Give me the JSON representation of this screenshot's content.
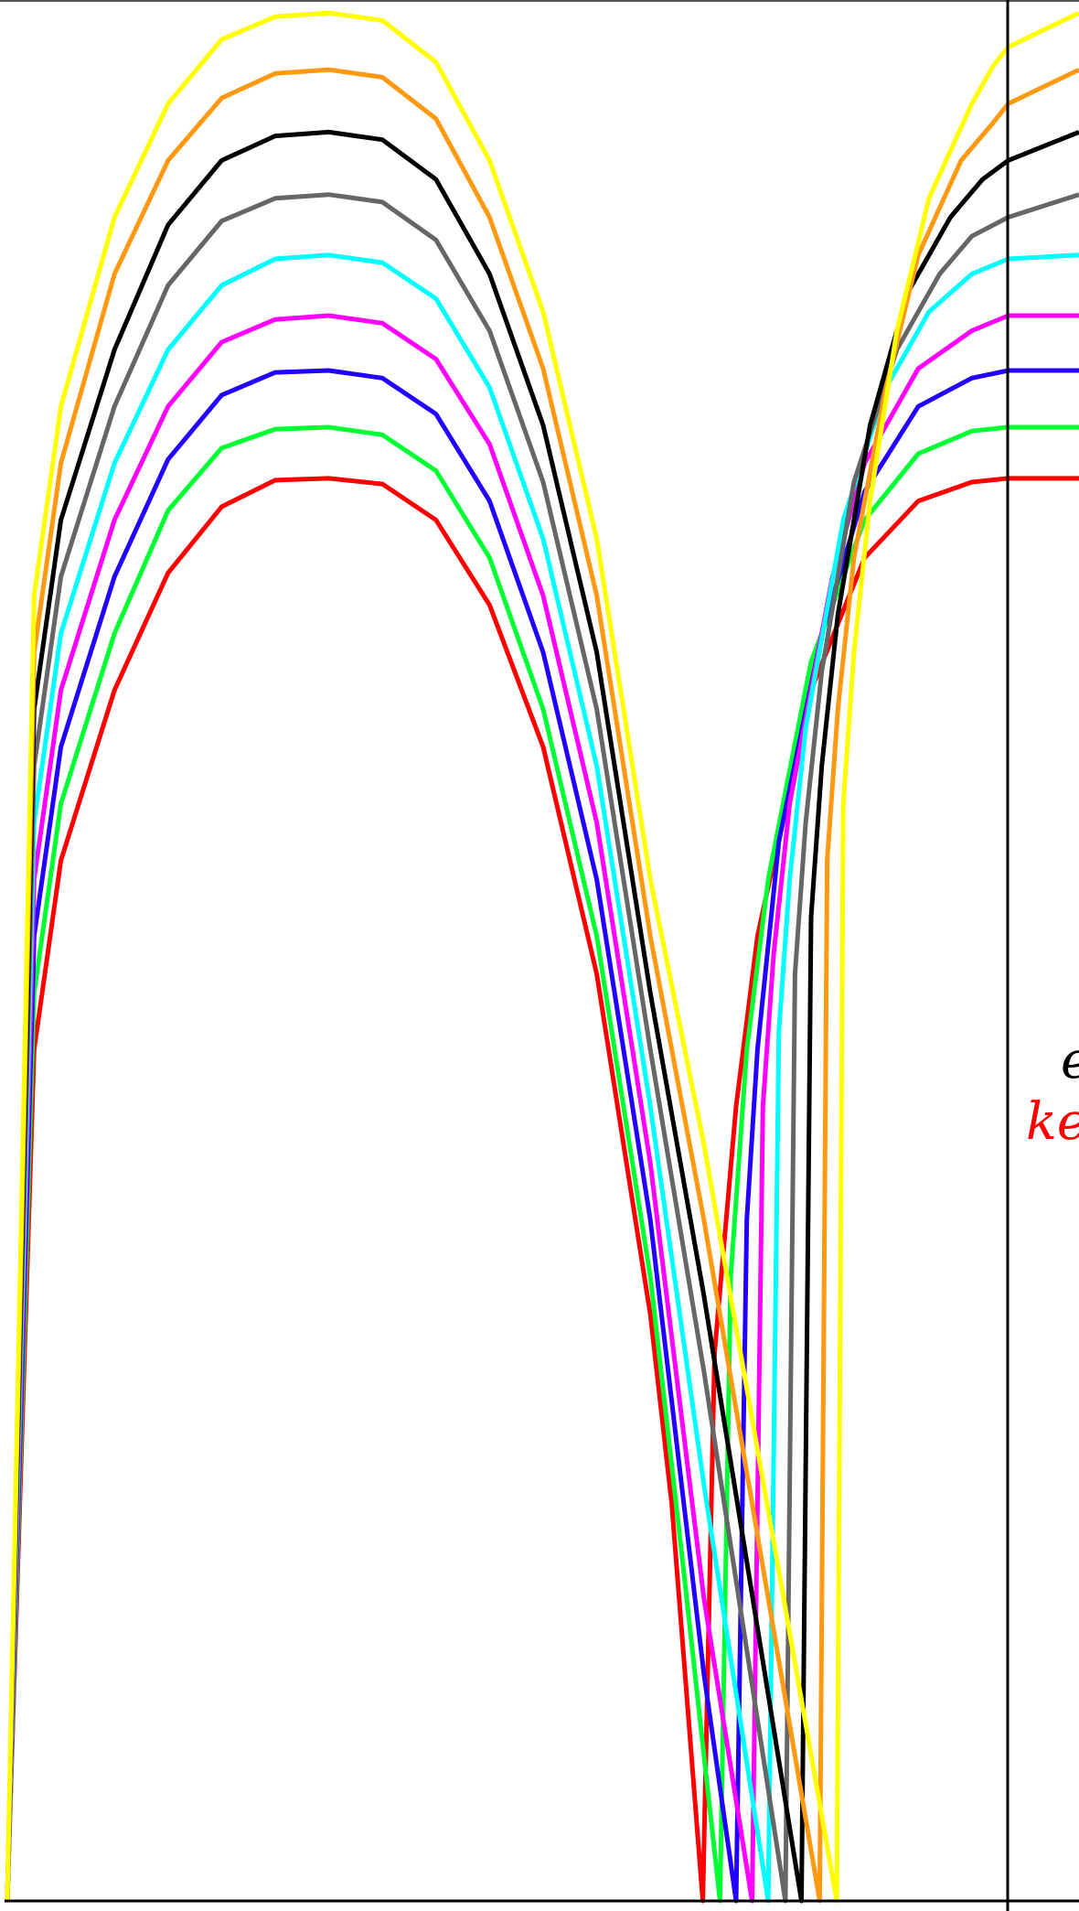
{
  "chart_data": {
    "type": "line",
    "title": "",
    "xlabel": "",
    "ylabel": "",
    "x_domain": [
      0,
      10
    ],
    "y_domain": [
      0,
      100
    ],
    "legend": "none",
    "grid": false,
    "annotations": [
      {
        "text": "e",
        "color": "#000000"
      },
      {
        "text": "kei",
        "color": "#ff0000"
      }
    ],
    "series": [
      {
        "color": "#ff0000",
        "x": [
          0.0,
          0.25,
          0.5,
          1.0,
          1.5,
          2.0,
          2.5,
          3.0,
          3.5,
          4.0,
          4.5,
          5.0,
          5.5,
          6.0,
          6.2,
          6.49,
          6.6,
          6.8,
          7.0,
          7.5,
          8.0,
          8.5,
          9.0,
          9.34,
          10.0
        ],
        "y": [
          0.0,
          45.0,
          55.0,
          64.0,
          70.2,
          73.7,
          75.1,
          75.2,
          74.9,
          73.0,
          68.5,
          61.0,
          49.0,
          31.0,
          21.0,
          0.0,
          29.0,
          42.0,
          51.0,
          64.0,
          71.0,
          74.0,
          75.0,
          75.2,
          75.2
        ]
      },
      {
        "color": "#00ff33",
        "x": [
          0.0,
          0.25,
          0.5,
          1.0,
          1.5,
          2.0,
          2.5,
          3.0,
          3.5,
          4.0,
          4.5,
          5.0,
          5.5,
          6.0,
          6.3,
          6.65,
          6.75,
          6.9,
          7.1,
          7.5,
          8.0,
          8.5,
          9.0,
          9.34,
          10.0
        ],
        "y": [
          0.0,
          48.0,
          58.0,
          67.0,
          73.5,
          76.8,
          77.8,
          77.9,
          77.5,
          75.6,
          71.0,
          63.0,
          51.0,
          33.0,
          18.0,
          0.0,
          33.0,
          45.0,
          54.0,
          65.5,
          73.0,
          76.5,
          77.7,
          77.9,
          77.9
        ]
      },
      {
        "color": "#2200ff",
        "x": [
          0.0,
          0.25,
          0.5,
          1.0,
          1.5,
          2.0,
          2.5,
          3.0,
          3.5,
          4.0,
          4.5,
          5.0,
          5.5,
          6.0,
          6.5,
          6.8,
          6.9,
          7.0,
          7.2,
          7.6,
          8.0,
          8.5,
          9.0,
          9.34,
          10.0
        ],
        "y": [
          0.0,
          51.0,
          61.0,
          70.0,
          76.2,
          79.6,
          80.8,
          80.9,
          80.5,
          78.6,
          74.0,
          66.0,
          54.0,
          36.0,
          12.0,
          0.0,
          36.0,
          45.0,
          56.0,
          67.0,
          74.5,
          79.0,
          80.5,
          80.9,
          80.9
        ]
      },
      {
        "color": "#ff00ff",
        "x": [
          0.0,
          0.25,
          0.5,
          1.0,
          1.5,
          2.0,
          2.5,
          3.0,
          3.5,
          4.0,
          4.5,
          5.0,
          5.5,
          6.0,
          6.5,
          6.95,
          7.05,
          7.15,
          7.3,
          7.7,
          8.0,
          8.5,
          9.0,
          9.34,
          10.0
        ],
        "y": [
          0.0,
          54.0,
          64.0,
          73.0,
          79.0,
          82.4,
          83.6,
          83.8,
          83.4,
          81.5,
          77.0,
          69.0,
          57.0,
          39.0,
          16.0,
          0.0,
          42.0,
          50.0,
          58.0,
          70.0,
          76.0,
          81.0,
          83.0,
          83.8,
          83.8
        ]
      },
      {
        "color": "#00ffff",
        "x": [
          0.0,
          0.25,
          0.5,
          1.0,
          1.5,
          2.0,
          2.5,
          3.0,
          3.5,
          4.0,
          4.5,
          5.0,
          5.5,
          6.0,
          6.5,
          7.1,
          7.2,
          7.3,
          7.45,
          7.8,
          8.2,
          8.6,
          9.0,
          9.34,
          10.0
        ],
        "y": [
          0.0,
          57.0,
          67.0,
          76.0,
          82.0,
          85.4,
          86.8,
          87.0,
          86.6,
          84.7,
          80.0,
          72.0,
          60.0,
          42.0,
          22.0,
          0.0,
          46.0,
          54.0,
          62.0,
          73.0,
          80.0,
          84.0,
          86.0,
          86.8,
          87.0
        ]
      },
      {
        "color": "#666666",
        "x": [
          0.0,
          0.25,
          0.5,
          1.0,
          1.5,
          2.0,
          2.5,
          3.0,
          3.5,
          4.0,
          4.5,
          5.0,
          5.5,
          6.0,
          6.5,
          7.26,
          7.35,
          7.45,
          7.6,
          7.9,
          8.3,
          8.7,
          9.0,
          9.34,
          10.0
        ],
        "y": [
          0.0,
          60.0,
          70.0,
          79.0,
          85.4,
          88.8,
          90.0,
          90.2,
          89.8,
          87.8,
          83.0,
          75.0,
          63.0,
          45.0,
          28.0,
          0.0,
          49.0,
          57.0,
          65.0,
          75.0,
          82.0,
          86.0,
          88.0,
          89.0,
          90.2
        ]
      },
      {
        "color": "#000000",
        "x": [
          0.0,
          0.25,
          0.5,
          1.0,
          1.5,
          2.0,
          2.5,
          3.0,
          3.5,
          4.0,
          4.5,
          5.0,
          5.5,
          6.0,
          6.5,
          7.41,
          7.5,
          7.6,
          7.75,
          8.05,
          8.4,
          8.8,
          9.1,
          9.34,
          10.0
        ],
        "y": [
          0.0,
          63.0,
          73.0,
          82.0,
          88.6,
          92.0,
          93.3,
          93.5,
          93.1,
          91.0,
          86.0,
          78.0,
          66.0,
          48.0,
          32.0,
          0.0,
          52.0,
          60.0,
          68.0,
          78.0,
          85.0,
          89.0,
          91.0,
          92.0,
          93.5
        ]
      },
      {
        "color": "#ff9911",
        "x": [
          0.0,
          0.25,
          0.5,
          1.0,
          1.5,
          2.0,
          2.5,
          3.0,
          3.5,
          4.0,
          4.5,
          5.0,
          5.5,
          6.0,
          6.5,
          7.58,
          7.65,
          7.75,
          7.9,
          8.2,
          8.5,
          8.9,
          9.2,
          9.34,
          10.0
        ],
        "y": [
          0.0,
          66.0,
          76.0,
          86.0,
          92.0,
          95.3,
          96.6,
          96.8,
          96.4,
          94.2,
          89.0,
          81.0,
          69.0,
          51.0,
          36.0,
          0.0,
          55.0,
          63.0,
          71.0,
          80.0,
          87.0,
          92.0,
          94.0,
          95.0,
          96.8
        ]
      },
      {
        "color": "#ffff00",
        "x": [
          0.0,
          0.25,
          0.5,
          1.0,
          1.5,
          2.0,
          2.5,
          3.0,
          3.5,
          4.0,
          4.5,
          5.0,
          5.5,
          6.0,
          6.5,
          7.74,
          7.8,
          7.9,
          8.05,
          8.3,
          8.6,
          9.0,
          9.2,
          9.34,
          10.0
        ],
        "y": [
          0.0,
          69.0,
          79.0,
          89.0,
          95.0,
          98.4,
          99.6,
          99.8,
          99.4,
          97.2,
          92.0,
          84.0,
          72.0,
          54.0,
          40.0,
          0.0,
          58.0,
          66.0,
          74.0,
          83.0,
          90.0,
          95.0,
          97.0,
          98.0,
          99.8
        ]
      }
    ]
  }
}
